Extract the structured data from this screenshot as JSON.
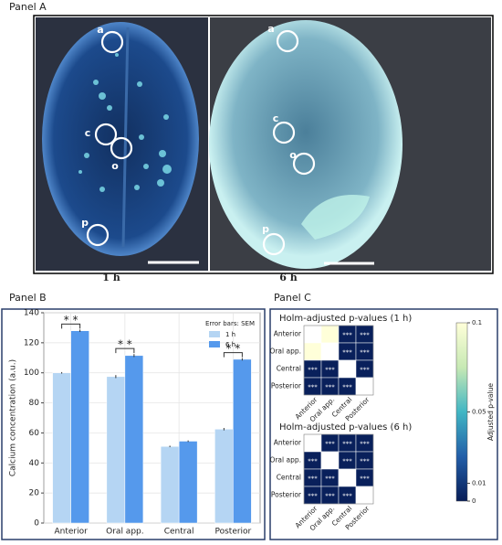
{
  "panel_a": {
    "title": "Panel A",
    "images": [
      {
        "caption": "1 h",
        "markers": [
          "a",
          "c",
          "o",
          "p"
        ]
      },
      {
        "caption": "6 h",
        "markers": [
          "a",
          "c",
          "o",
          "p"
        ]
      }
    ]
  },
  "panels": {
    "b": "Panel B",
    "c": "Panel C"
  },
  "colorbar": {
    "label": "Adjusted p-value",
    "zlim": [
      0,
      0.1
    ],
    "ticks": [
      0,
      0.01,
      0.05,
      0.1
    ],
    "colormap": "YlGnBu"
  },
  "chart_data": [
    {
      "type": "bar",
      "ylabel": "Calcium concentration (a.u.)",
      "categories": [
        "Anterior",
        "Oral app.",
        "Central",
        "Posterior"
      ],
      "legend_title": "Error bars: SEM",
      "legend": "upper right",
      "grid": true,
      "series": [
        {
          "name": "1 h",
          "color": "#b5d5f3",
          "values": [
            100,
            97.5,
            51,
            62.5
          ],
          "errors": [
            0.5,
            1,
            0.5,
            0.8
          ]
        },
        {
          "name": "6 h",
          "color": "#5599ec",
          "values": [
            128,
            111.5,
            54.5,
            109
          ],
          "errors": [
            0.8,
            1,
            0.5,
            0.8
          ]
        }
      ],
      "ylim": [
        0,
        140
      ],
      "yticks": [
        0,
        20,
        40,
        60,
        80,
        100,
        120,
        140
      ],
      "annotations": [
        {
          "category": "Anterior",
          "label": "* *"
        },
        {
          "category": "Oral app.",
          "label": "* *"
        },
        {
          "category": "Posterior",
          "label": "* *"
        }
      ]
    },
    {
      "type": "heatmap",
      "title": "Holm-adjusted p-values (1 h)",
      "rows": [
        "Anterior",
        "Oral app.",
        "Central",
        "Posterior"
      ],
      "columns": [
        "Anterior",
        "Oral app.",
        "Central",
        "Posterior"
      ],
      "values": [
        [
          null,
          0.1,
          0.001,
          0.001
        ],
        [
          0.1,
          null,
          0.001,
          0.001
        ],
        [
          0.001,
          0.001,
          null,
          0.001
        ],
        [
          0.001,
          0.001,
          0.001,
          null
        ]
      ],
      "cell_labels": [
        [
          null,
          null,
          "***",
          "***"
        ],
        [
          null,
          null,
          "***",
          "***"
        ],
        [
          "***",
          "***",
          null,
          "***"
        ],
        [
          "***",
          "***",
          "***",
          null
        ]
      ]
    },
    {
      "type": "heatmap",
      "title": "Holm-adjusted p-values (6 h)",
      "rows": [
        "Anterior",
        "Oral app.",
        "Central",
        "Posterior"
      ],
      "columns": [
        "Anterior",
        "Oral app.",
        "Central",
        "Posterior"
      ],
      "values": [
        [
          null,
          0.001,
          0.001,
          0.001
        ],
        [
          0.001,
          null,
          0.001,
          0.001
        ],
        [
          0.001,
          0.001,
          null,
          0.001
        ],
        [
          0.001,
          0.001,
          0.001,
          null
        ]
      ],
      "cell_labels": [
        [
          null,
          "***",
          "***",
          "***"
        ],
        [
          "***",
          null,
          "***",
          "***"
        ],
        [
          "***",
          "***",
          null,
          "***"
        ],
        [
          "***",
          "***",
          "***",
          null
        ]
      ]
    }
  ]
}
